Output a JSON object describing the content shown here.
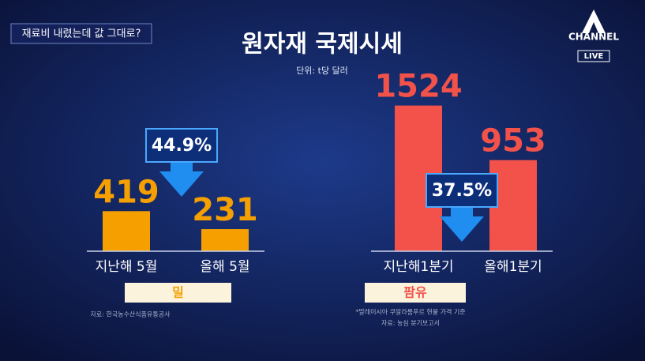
{
  "banner": "재료비 내렸는데 값 그대로?",
  "title": "원자재 국제시세",
  "unit": "단위: t당 달러",
  "logo": {
    "name": "CHANNEL",
    "live": "LIVE"
  },
  "chart_data": [
    {
      "type": "bar",
      "title": "밀",
      "categories": [
        "지난해 5월",
        "올해 5월"
      ],
      "values": [
        419,
        231
      ],
      "color": "#f5a000",
      "annotation": "44.9%",
      "source": [
        "자료: 한국농수산식품유통공사"
      ]
    },
    {
      "type": "bar",
      "title": "팜유",
      "categories": [
        "지난해1분기",
        "올해1분기"
      ],
      "values": [
        1524,
        953
      ],
      "color": "#f2524a",
      "annotation": "37.5%",
      "source": [
        "*말레이시아 쿠알라룸푸르 현물 가격 기준",
        "자료: 농심 분기보고서"
      ]
    }
  ]
}
